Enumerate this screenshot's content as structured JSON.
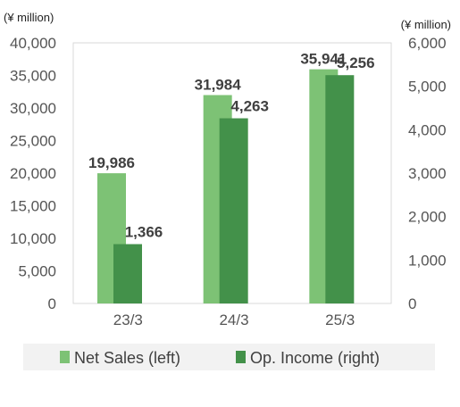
{
  "chart_data": {
    "type": "bar",
    "categories": [
      "23/3",
      "24/3",
      "25/3"
    ],
    "series": [
      {
        "name": "Net Sales (left)",
        "axis": "left",
        "values": [
          19986,
          31984,
          35941
        ],
        "labels": [
          "19,986",
          "31,984",
          "35,941"
        ],
        "color": "#7dc275"
      },
      {
        "name": "Op. Income (right)",
        "axis": "right",
        "values": [
          1366,
          4263,
          5256
        ],
        "labels": [
          "1,366",
          "4,263",
          "5,256"
        ],
        "color": "#43914a"
      }
    ],
    "y_left": {
      "unit": "(¥ million)",
      "ylim": [
        0,
        40000
      ],
      "ticks": [
        "0",
        "5,000",
        "10,000",
        "15,000",
        "20,000",
        "25,000",
        "30,000",
        "35,000",
        "40,000"
      ]
    },
    "y_right": {
      "unit": "(¥ million)",
      "ylim": [
        0,
        6000
      ],
      "ticks": [
        "0",
        "1,000",
        "2,000",
        "3,000",
        "4,000",
        "5,000",
        "6,000"
      ]
    },
    "grid": false,
    "legend": "bottom"
  }
}
